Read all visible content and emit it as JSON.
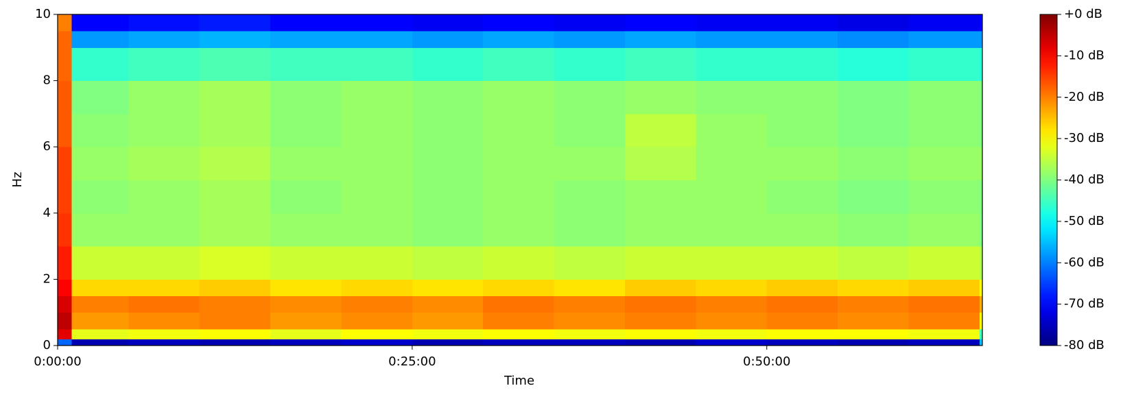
{
  "chart_data": {
    "type": "heatmap",
    "xlabel": "Time",
    "ylabel": "Hz",
    "colormap": "jet",
    "xbins": [
      0,
      60,
      300,
      600,
      900,
      1200,
      1500,
      1800,
      2100,
      2400,
      2700,
      3000,
      3300,
      3600,
      3900,
      3912
    ],
    "ybins": [
      0,
      0.2,
      0.5,
      1,
      1.5,
      2,
      3,
      4,
      5,
      6,
      7,
      8,
      9,
      9.5,
      10
    ],
    "values": [
      [
        -62,
        -76,
        -75,
        -76,
        -75,
        -74,
        -76,
        -75,
        -75,
        -76,
        -74,
        -75,
        -76,
        -75,
        -55
      ],
      [
        -8,
        -32,
        -31,
        -30,
        -32,
        -30,
        -31,
        -30,
        -31,
        -30,
        -31,
        -30,
        -30,
        -31,
        -45
      ],
      [
        -5,
        -22,
        -21,
        -20,
        -22,
        -21,
        -22,
        -20,
        -21,
        -20,
        -21,
        -20,
        -21,
        -20,
        -30
      ],
      [
        -7,
        -20,
        -19,
        -20,
        -21,
        -20,
        -21,
        -19,
        -20,
        -19,
        -20,
        -19,
        -20,
        -19,
        -24
      ],
      [
        -10,
        -27,
        -27,
        -26,
        -28,
        -27,
        -28,
        -27,
        -28,
        -26,
        -27,
        -26,
        -27,
        -26,
        -30
      ],
      [
        -12,
        -34,
        -34,
        -33,
        -34,
        -34,
        -35,
        -34,
        -35,
        -34,
        -34,
        -34,
        -35,
        -34,
        -36
      ],
      [
        -14,
        -38,
        -38,
        -37,
        -38,
        -38,
        -39,
        -38,
        -39,
        -38,
        -38,
        -38,
        -39,
        -38,
        -40
      ],
      [
        -15,
        -39,
        -38,
        -37,
        -39,
        -38,
        -39,
        -38,
        -39,
        -38,
        -38,
        -39,
        -40,
        -39,
        -40
      ],
      [
        -15,
        -38,
        -37,
        -36,
        -38,
        -38,
        -39,
        -38,
        -38,
        -36,
        -38,
        -38,
        -39,
        -38,
        -38
      ],
      [
        -17,
        -39,
        -38,
        -37,
        -39,
        -38,
        -39,
        -38,
        -39,
        -35,
        -38,
        -39,
        -40,
        -39,
        -40
      ],
      [
        -17,
        -40,
        -38,
        -37,
        -39,
        -38,
        -39,
        -38,
        -39,
        -38,
        -39,
        -39,
        -40,
        -39,
        -40
      ],
      [
        -18,
        -46,
        -45,
        -44,
        -45,
        -45,
        -46,
        -45,
        -46,
        -45,
        -46,
        -46,
        -47,
        -46,
        -47
      ],
      [
        -18,
        -58,
        -57,
        -56,
        -57,
        -57,
        -58,
        -57,
        -58,
        -57,
        -58,
        -58,
        -59,
        -58,
        -58
      ],
      [
        -20,
        -70,
        -69,
        -68,
        -70,
        -70,
        -71,
        -70,
        -71,
        -70,
        -71,
        -71,
        -72,
        -71,
        -70
      ]
    ],
    "xlim": [
      0,
      3912
    ],
    "xticks": [
      {
        "value": 0,
        "label": "0:00:00"
      },
      {
        "value": 1500,
        "label": "0:25:00"
      },
      {
        "value": 3000,
        "label": "0:50:00"
      }
    ],
    "ylim": [
      0,
      10
    ],
    "yticks": [
      0,
      2,
      4,
      6,
      8,
      10
    ],
    "clim": [
      -80,
      0
    ],
    "cticks": [
      {
        "value": 0,
        "label": "+0 dB"
      },
      {
        "value": -10,
        "label": "-10 dB"
      },
      {
        "value": -20,
        "label": "-20 dB"
      },
      {
        "value": -30,
        "label": "-30 dB"
      },
      {
        "value": -40,
        "label": "-40 dB"
      },
      {
        "value": -50,
        "label": "-50 dB"
      },
      {
        "value": -60,
        "label": "-60 dB"
      },
      {
        "value": -70,
        "label": "-70 dB"
      },
      {
        "value": -80,
        "label": "-80 dB"
      }
    ]
  }
}
